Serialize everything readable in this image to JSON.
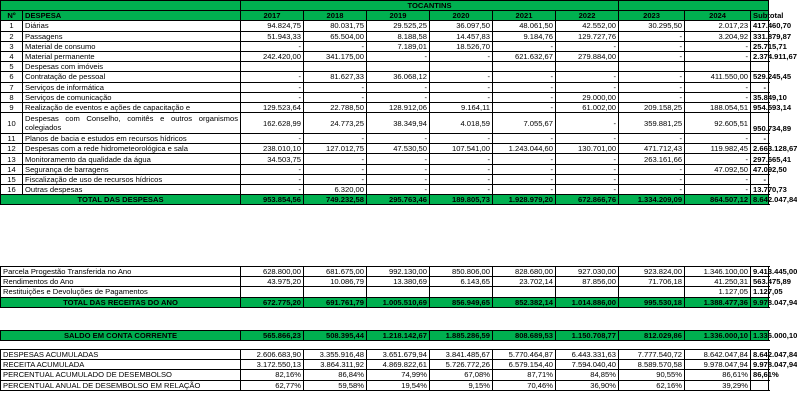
{
  "title": "TOCANTINS",
  "headers": [
    "Nº",
    "DESPESA",
    "2017",
    "2018",
    "2019",
    "2020",
    "2021",
    "2022",
    "2023",
    "2024",
    "Subtotal"
  ],
  "expense_rows": [
    {
      "n": "1",
      "label": "Diárias",
      "v": [
        "94.824,75",
        "80.031,75",
        "29.525,25",
        "36.097,50",
        "48.061,50",
        "42.552,00",
        "30.295,50",
        "2.017,23"
      ],
      "sub": "417.460,70"
    },
    {
      "n": "2",
      "label": "Passagens",
      "v": [
        "51.943,33",
        "65.504,00",
        "8.188,58",
        "14.457,83",
        "9.184,76",
        "129.727,76",
        "-",
        "3.204,92"
      ],
      "sub": "331.879,87"
    },
    {
      "n": "3",
      "label": "Material de consumo",
      "v": [
        "-",
        "-",
        "7.189,01",
        "18.526,70",
        "-",
        "-",
        "-",
        "-"
      ],
      "sub": "25.715,71"
    },
    {
      "n": "4",
      "label": "Material permanente",
      "v": [
        "242.420,00",
        "341.175,00",
        "-",
        "-",
        "621.632,67",
        "279.884,00",
        "-",
        "-"
      ],
      "sub": "2.374.911,67"
    },
    {
      "n": "5",
      "label": "Despesas com imóveis",
      "v": [
        "",
        "",
        "",
        "",
        "",
        "",
        "",
        ""
      ],
      "sub": ""
    },
    {
      "n": "6",
      "label": "Contratação de pessoal",
      "v": [
        "-",
        "81.627,33",
        "36.068,12",
        "-",
        "-",
        "-",
        "-",
        "411.550,00"
      ],
      "sub": "529.245,45"
    },
    {
      "n": "7",
      "label": "Serviços de informática",
      "v": [
        "-",
        "-",
        "-",
        "-",
        "-",
        "-",
        "-",
        "-"
      ],
      "sub": "-"
    },
    {
      "n": "8",
      "label": "Serviços de comunicação",
      "v": [
        "-",
        "-",
        "-",
        "-",
        "-",
        "29.000,00",
        "-",
        "-"
      ],
      "sub": "35.849,10"
    },
    {
      "n": "9",
      "label": "Realização de eventos e ações de capacitação e",
      "v": [
        "129.523,64",
        "22.788,50",
        "128.912,06",
        "9.164,11",
        "-",
        "61.002,00",
        "209.158,25",
        "188.054,51"
      ],
      "sub": "954.593,14"
    },
    {
      "n": "10",
      "label": "Despesas com Conselho, comitês e outros organismos colegiados",
      "v": [
        "162.628,99",
        "24.773,25",
        "38.349,94",
        "4.018,59",
        "7.055,67",
        "-",
        "359.881,25",
        "92.605,51"
      ],
      "sub": "950.734,89",
      "tall": true
    },
    {
      "n": "11",
      "label": "Planos de bacia e estudos em recursos hídricos",
      "v": [
        "-",
        "-",
        "-",
        "-",
        "-",
        "-",
        "-",
        "-"
      ],
      "sub": "-"
    },
    {
      "n": "12",
      "label": "Despesas com a rede hidrometeorológica e sala",
      "v": [
        "238.010,10",
        "127.012,75",
        "47.530,50",
        "107.541,00",
        "1.243.044,60",
        "130.701,00",
        "471.712,43",
        "119.982,45"
      ],
      "sub": "2.663.128,67"
    },
    {
      "n": "13",
      "label": "Monitoramento da qualidade da água",
      "v": [
        "34.503,75",
        "-",
        "-",
        "-",
        "-",
        "-",
        "263.161,66",
        "-"
      ],
      "sub": "297.665,41"
    },
    {
      "n": "14",
      "label": "Segurança de barragens",
      "v": [
        "-",
        "-",
        "-",
        "-",
        "-",
        "-",
        "-",
        "47.092,50"
      ],
      "sub": "47.092,50"
    },
    {
      "n": "15",
      "label": "Fiscalização de uso de recursos hídricos",
      "v": [
        "-",
        "-",
        "-",
        "-",
        "-",
        "-",
        "-",
        "-"
      ],
      "sub": "-"
    },
    {
      "n": "16",
      "label": "Outras despesas",
      "v": [
        "-",
        "6.320,00",
        "-",
        "-",
        "-",
        "-",
        "-",
        "-"
      ],
      "sub": "13.770,73"
    }
  ],
  "total_despesas": {
    "label": "TOTAL DAS DESPESAS",
    "v": [
      "953.854,56",
      "749.232,58",
      "295.763,46",
      "189.805,73",
      "1.928.979,20",
      "672.866,76",
      "1.334.209,09",
      "864.507,12"
    ],
    "sub": "8.642.047,84"
  },
  "receitas_rows": [
    {
      "label": "Parcela Progestão Transferida no Ano",
      "v": [
        "628.800,00",
        "681.675,00",
        "992.130,00",
        "850.806,00",
        "828.680,00",
        "927.030,00",
        "923.824,00",
        "1.346.100,00"
      ],
      "sub": "9.413.445,00"
    },
    {
      "label": "Rendimentos do Ano",
      "v": [
        "43.975,20",
        "10.086,79",
        "13.380,69",
        "6.143,65",
        "23.702,14",
        "87.856,00",
        "71.706,18",
        "41.250,31"
      ],
      "sub": "563.475,89"
    },
    {
      "label": "Restituições e Devoluções de Pagamentos",
      "v": [
        "",
        "",
        "",
        "",
        "",
        "",
        "",
        "1.127,05"
      ],
      "sub": "1.127,05"
    }
  ],
  "total_receitas": {
    "label": "TOTAL DAS RECEITAS DO ANO",
    "v": [
      "672.775,20",
      "691.761,79",
      "1.005.510,69",
      "856.949,65",
      "852.382,14",
      "1.014.886,00",
      "995.530,18",
      "1.388.477,36"
    ],
    "sub": "9.978.047,94"
  },
  "saldo": {
    "label": "SALDO EM CONTA CORRENTE",
    "v": [
      "565.866,23",
      "508.395,44",
      "1.218.142,67",
      "1.885.286,59",
      "808.689,53",
      "1.150.708,77",
      "812.029,86",
      "1.336.000,10"
    ],
    "sub": "1.336.000,10"
  },
  "acumulados": [
    {
      "label": "DESPESAS ACUMULADAS",
      "v": [
        "2.606.683,90",
        "3.355.916,48",
        "3.651.679,94",
        "3.841.485,67",
        "5.770.464,87",
        "6.443.331,63",
        "7.777.540,72",
        "8.642.047,84"
      ],
      "sub": "8.642.047,84"
    },
    {
      "label": "RECEITA ACUMULADA",
      "v": [
        "3.172.550,13",
        "3.864.311,92",
        "4.869.822,61",
        "5.726.772,26",
        "6.579.154,40",
        "7.594.040,40",
        "8.589.570,58",
        "9.978.047,94"
      ],
      "sub": "9.978.047,94"
    },
    {
      "label": "PERCENTUAL ACUMULADO DE DESEMBOLSO",
      "v": [
        "82,16%",
        "86,84%",
        "74,99%",
        "67,08%",
        "87,71%",
        "84,85%",
        "90,55%",
        "86,61%"
      ],
      "sub": "86,61%"
    },
    {
      "label": "PERCENTUAL ANUAL DE DESEMBOLSO EM RELAÇÃO",
      "v": [
        "62,77%",
        "59,58%",
        "19,54%",
        "9,15%",
        "70,46%",
        "36,90%",
        "62,16%",
        "39,29%"
      ],
      "sub": ""
    }
  ]
}
